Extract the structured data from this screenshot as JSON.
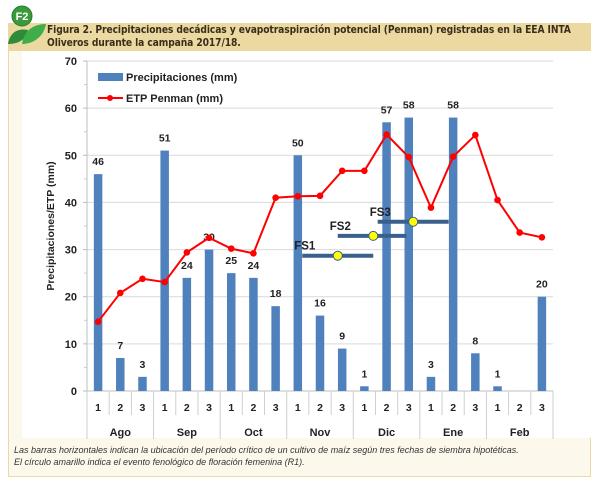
{
  "figure": {
    "badge": "F2",
    "title": "Figura 2. Precipitaciones decádicas y evapotraspiración potencial (Penman) registradas en la EEA INTA Oliveros durante la campaña 2017/18.",
    "caption_line1": "Las barras horizontales indican la ubicación del período crítico de un cultivo de maíz según tres fechas de siembra hipotéticas.",
    "caption_line2": "El círculo amarillo indica el evento fenológico de floración femenina (R1)."
  },
  "colors": {
    "bar": "#4f81bd",
    "line": "#ff0000",
    "fs_bar": "#3b5f8c",
    "fs_dot": "#ffff00",
    "title_band": "#ecd9a2",
    "logo_green": "#2e9a3e"
  },
  "chart_data": {
    "type": "bar",
    "title": "",
    "xlabel": "",
    "ylabel": "Precipitaciones/ETP (mm)",
    "ylim": [
      0,
      70
    ],
    "yticks": [
      0,
      10,
      20,
      30,
      40,
      50,
      60,
      70
    ],
    "grid": true,
    "legend_position": "top-left",
    "categories": [
      "1",
      "2",
      "3",
      "1",
      "2",
      "3",
      "1",
      "2",
      "3",
      "1",
      "2",
      "3",
      "1",
      "2",
      "3",
      "1",
      "2",
      "3",
      "1",
      "2",
      "3"
    ],
    "groups": [
      "Ago",
      "Sep",
      "Oct",
      "Nov",
      "Dic",
      "Ene",
      "Feb"
    ],
    "series": [
      {
        "name": "Precipitaciones (mm)",
        "type": "bar",
        "values": [
          46,
          7,
          3,
          51,
          24,
          30,
          25,
          24,
          18,
          50,
          16,
          9,
          1,
          57,
          58,
          3,
          58,
          8,
          1,
          0,
          20
        ],
        "labels": [
          "46",
          "7",
          "3",
          "51",
          "24",
          "30",
          "25",
          "24",
          "18",
          "50",
          "16",
          "9",
          "1",
          "57",
          "58",
          "3",
          "58",
          "8",
          "1",
          "",
          "20"
        ]
      },
      {
        "name": "ETP Penman (mm)",
        "type": "line",
        "values": [
          14.7,
          20.8,
          23.8,
          23.1,
          29.4,
          32.5,
          30.2,
          29.2,
          41.0,
          41.3,
          41.4,
          46.7,
          46.7,
          54.4,
          49.6,
          38.9,
          49.7,
          54.3,
          40.5,
          33.6,
          32.6
        ]
      }
    ],
    "annotations": [
      {
        "label": "FS1",
        "y": 28.7,
        "start": 9.7,
        "end": 12.9,
        "r1": 11.3
      },
      {
        "label": "FS2",
        "y": 32.9,
        "start": 11.3,
        "end": 14.4,
        "r1": 12.9
      },
      {
        "label": "FS3",
        "y": 35.9,
        "start": 13.1,
        "end": 16.3,
        "r1": 14.7
      }
    ]
  }
}
